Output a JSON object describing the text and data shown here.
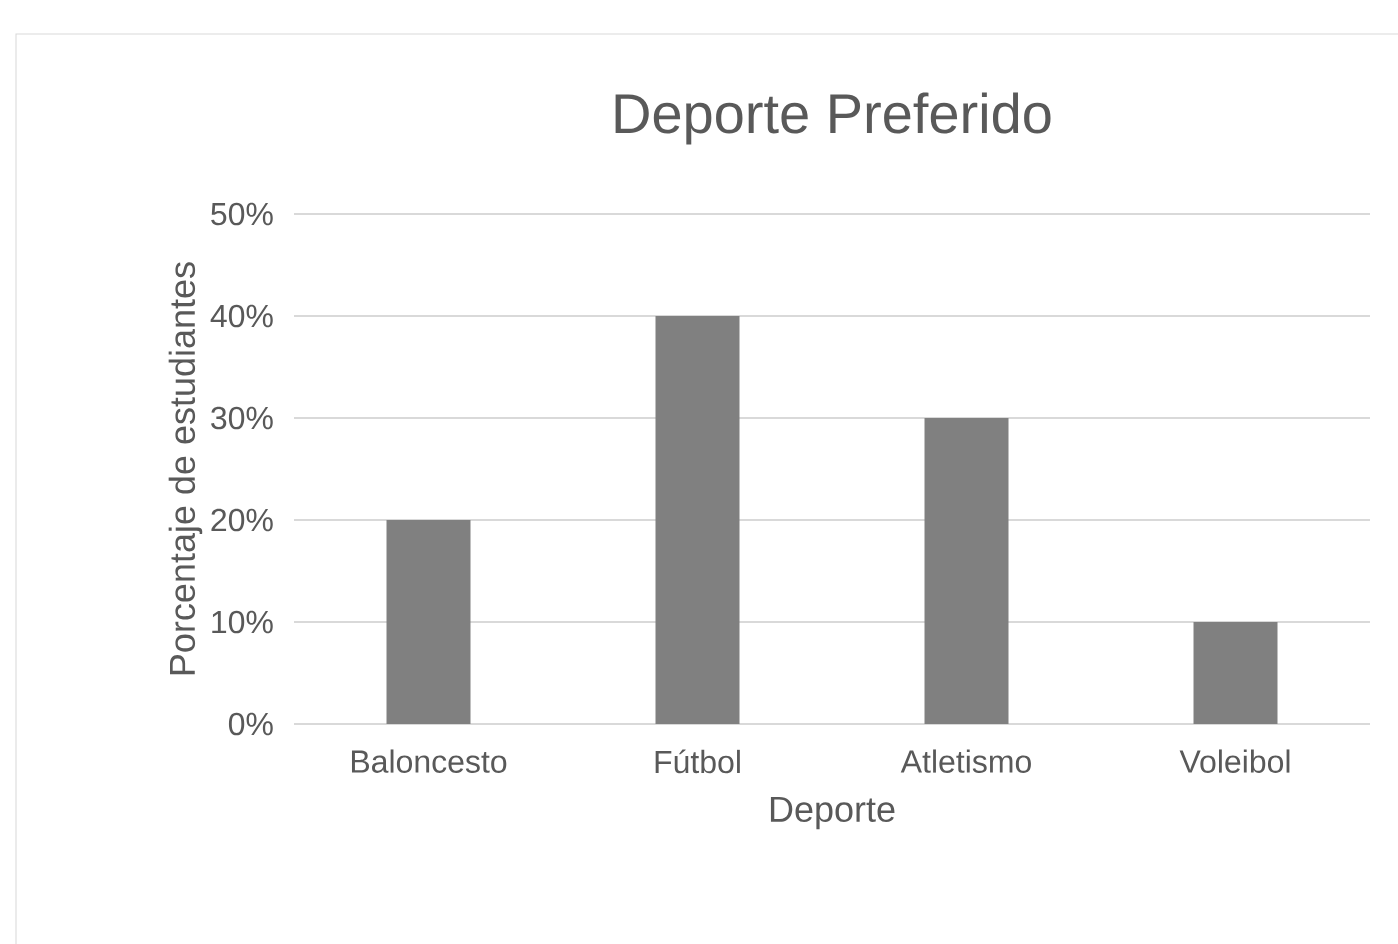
{
  "chart_data": {
    "type": "bar",
    "title": "Deporte Preferido",
    "xlabel": "Deporte",
    "ylabel": "Porcentaje de estudiantes",
    "categories": [
      "Baloncesto",
      "Fútbol",
      "Atletismo",
      "Voleibol"
    ],
    "values": [
      20,
      40,
      30,
      10
    ],
    "color": "#808080",
    "ylim": [
      0,
      50
    ],
    "yticks": [
      {
        "value": 0,
        "label": "0%"
      },
      {
        "value": 10,
        "label": "10%"
      },
      {
        "value": 20,
        "label": "20%"
      },
      {
        "value": 30,
        "label": "30%"
      },
      {
        "value": 40,
        "label": "40%"
      },
      {
        "value": 50,
        "label": "50%"
      }
    ],
    "grid": "y"
  }
}
